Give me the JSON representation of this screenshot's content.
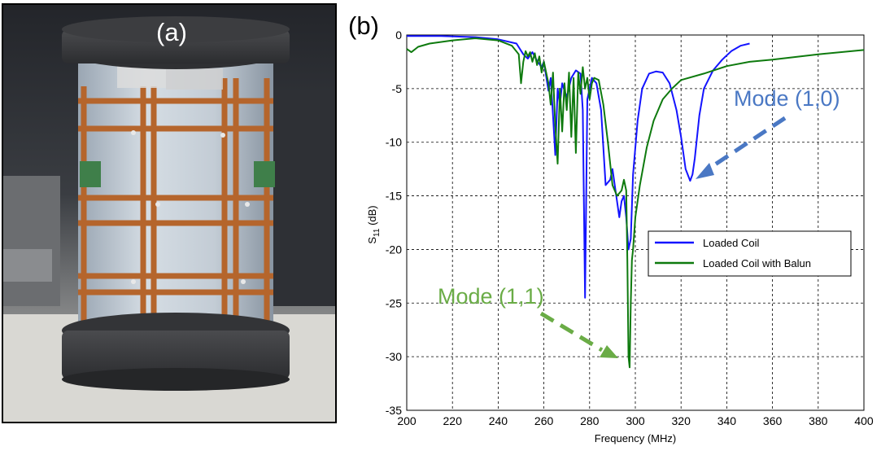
{
  "panel_a": {
    "label": "(a)"
  },
  "panel_b": {
    "label": "(b)"
  },
  "colors": {
    "loaded": "#1414ff",
    "balun": "#0e7a0e",
    "mode10": "#4a78c4",
    "mode11": "#6aac46"
  },
  "annotations": {
    "mode10": "Mode (1,0)",
    "mode11": "Mode (1,1)"
  },
  "chart_data": {
    "type": "line",
    "title": "",
    "xlabel": "Frequency (MHz)",
    "ylabel_main": "S",
    "ylabel_sub": "11",
    "ylabel_unit": " (dB)",
    "xlim": [
      200,
      400
    ],
    "ylim": [
      -35,
      0
    ],
    "xticks": [
      200,
      220,
      240,
      260,
      280,
      300,
      320,
      340,
      360,
      380,
      400
    ],
    "yticks": [
      0,
      -5,
      -10,
      -15,
      -20,
      -25,
      -30,
      -35
    ],
    "grid": true,
    "legend_position": "center-right",
    "series": [
      {
        "name": "Loaded Coil",
        "x": [
          200,
          215,
          230,
          240,
          248,
          251,
          253,
          255,
          257,
          259,
          260,
          262,
          263,
          264,
          265,
          266,
          267,
          268,
          270,
          272,
          274,
          276,
          277,
          278,
          279,
          281,
          283,
          285,
          287,
          289,
          290,
          292,
          293,
          294,
          295,
          296,
          297,
          298,
          299,
          301,
          303,
          306,
          309,
          312,
          315,
          318,
          320,
          322,
          324,
          325,
          326,
          328,
          330,
          334,
          338,
          342,
          346,
          350
        ],
        "y": [
          -0.1,
          -0.1,
          -0.2,
          -0.4,
          -0.8,
          -1.8,
          -2.2,
          -1.6,
          -2.4,
          -3.0,
          -2.5,
          -5.2,
          -4.0,
          -7.5,
          -11.2,
          -5.0,
          -6.5,
          -4.5,
          -5.8,
          -4.0,
          -3.3,
          -3.6,
          -7.0,
          -24.5,
          -6.0,
          -4.0,
          -4.5,
          -7.0,
          -14.0,
          -13.5,
          -12.5,
          -15.5,
          -17.0,
          -15.5,
          -15.0,
          -17.0,
          -20.0,
          -19.0,
          -13.0,
          -8.0,
          -5.0,
          -3.6,
          -3.4,
          -3.5,
          -4.5,
          -7.0,
          -9.5,
          -12.5,
          -13.6,
          -13.0,
          -11.5,
          -7.5,
          -5.0,
          -3.3,
          -2.3,
          -1.5,
          -1.0,
          -0.8
        ]
      },
      {
        "name": "Loaded Coil with Balun",
        "x": [
          200,
          202,
          205,
          210,
          220,
          230,
          240,
          246,
          249,
          250,
          251,
          252,
          253,
          254,
          255,
          256,
          257,
          258,
          259,
          260,
          262,
          263,
          264,
          265,
          266,
          267,
          268,
          269,
          270,
          271,
          272,
          273,
          274,
          275,
          276,
          277,
          278,
          279,
          280,
          281,
          282,
          284,
          286,
          288,
          290,
          292,
          294,
          295,
          296,
          296.5,
          297,
          297.5,
          298,
          298.5,
          299,
          300,
          302,
          305,
          308,
          312,
          316,
          320,
          330,
          340,
          350,
          360,
          380,
          400
        ],
        "y": [
          -1.3,
          -1.6,
          -1.1,
          -0.8,
          -0.5,
          -0.3,
          -0.5,
          -1.0,
          -1.8,
          -4.5,
          -2.5,
          -1.5,
          -2.0,
          -1.6,
          -2.5,
          -1.7,
          -2.8,
          -2.0,
          -3.5,
          -2.5,
          -4.5,
          -6.5,
          -3.5,
          -8.5,
          -12.0,
          -5.0,
          -9.0,
          -4.5,
          -7.0,
          -3.5,
          -9.5,
          -4.0,
          -11.0,
          -3.5,
          -5.5,
          -3.0,
          -5.0,
          -4.0,
          -6.0,
          -4.5,
          -4.0,
          -4.2,
          -6.5,
          -10.0,
          -14.0,
          -15.0,
          -14.5,
          -13.5,
          -14.5,
          -21.0,
          -30.0,
          -31.0,
          -25.0,
          -21.0,
          -20.0,
          -17.0,
          -14.0,
          -10.5,
          -8.0,
          -6.0,
          -5.0,
          -4.2,
          -3.6,
          -2.9,
          -2.5,
          -2.3,
          -1.8,
          -1.4
        ]
      }
    ]
  }
}
